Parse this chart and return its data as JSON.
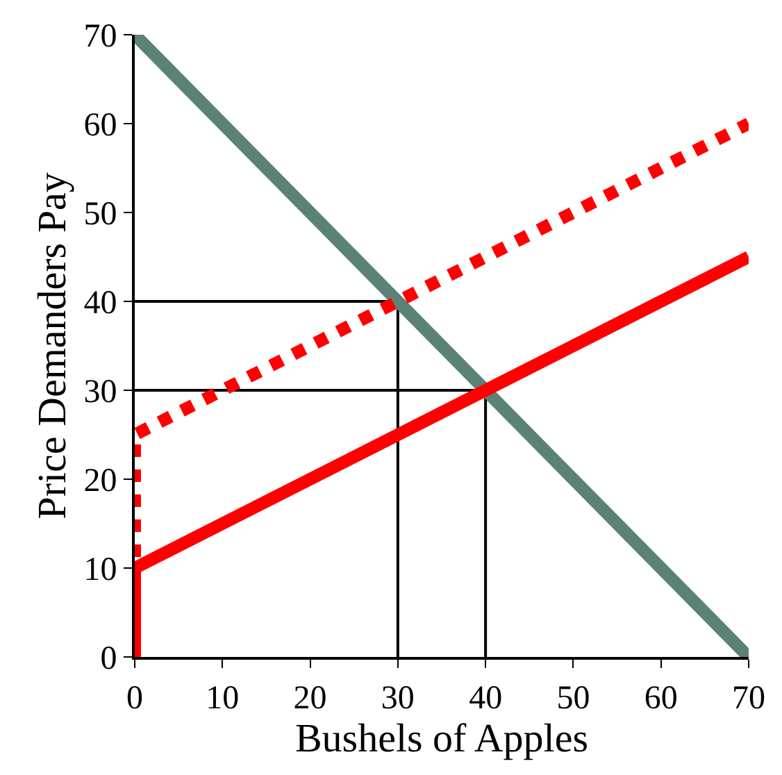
{
  "chart_data": {
    "type": "line",
    "xlabel": "Bushels of Apples",
    "ylabel": "Price Demanders Pay",
    "xlim": [
      0,
      70
    ],
    "ylim": [
      0,
      70
    ],
    "xticks": [
      0,
      10,
      20,
      30,
      40,
      50,
      60,
      70
    ],
    "yticks": [
      0,
      10,
      20,
      30,
      40,
      50,
      60,
      70
    ],
    "marker": "none",
    "series": [
      {
        "color": "#000000",
        "x": [
          0,
          30,
          30
        ],
        "values": [
          40,
          40,
          0
        ],
        "line_style": "solid"
      },
      {
        "color": "#000000",
        "x": [
          0,
          40,
          40
        ],
        "values": [
          30,
          30,
          0
        ],
        "line_style": "solid"
      },
      {
        "color": "#5a8276",
        "x": [
          0,
          70
        ],
        "values": [
          70,
          0
        ],
        "line_style": "solid"
      },
      {
        "color": "#ff0000",
        "x": [
          0,
          0,
          70
        ],
        "values": [
          0,
          10,
          45
        ],
        "line_style": "solid"
      },
      {
        "color": "#ff0000",
        "x": [
          0,
          0,
          70
        ],
        "values": [
          0,
          25,
          60
        ],
        "line_style": "dotted"
      }
    ]
  }
}
